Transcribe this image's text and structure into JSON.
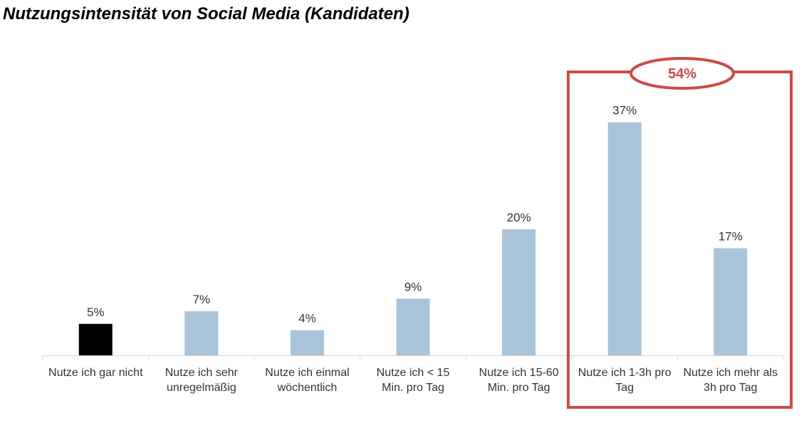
{
  "page": {
    "title": "Nutzungsintensität von Social Media (Kandidaten)"
  },
  "chart_data": {
    "type": "bar",
    "title": "Nutzungsintensität von Social Media (Kandidaten)",
    "xlabel": "",
    "ylabel": "",
    "ylim": [
      0,
      40
    ],
    "grid": false,
    "legend": "none",
    "unit": "%",
    "categories": [
      [
        "Nutze ich gar nicht"
      ],
      [
        "Nutze ich sehr",
        "unregelmäßig"
      ],
      [
        "Nutze ich einmal",
        "wöchentlich"
      ],
      [
        "Nutze ich < 15",
        "Min. pro Tag"
      ],
      [
        "Nutze ich 15-60",
        "Min. pro Tag"
      ],
      [
        "Nutze ich 1-3h pro",
        "Tag"
      ],
      [
        "Nutze ich mehr als",
        "3h pro Tag"
      ]
    ],
    "values": [
      5,
      7,
      4,
      9,
      20,
      37,
      17
    ],
    "value_labels": [
      "5%",
      "7%",
      "4%",
      "9%",
      "20%",
      "37%",
      "17%"
    ],
    "bar_colors": [
      "#000000",
      "#a9c4d9",
      "#a9c4d9",
      "#a9c4d9",
      "#a9c4d9",
      "#a9c4d9",
      "#a9c4d9"
    ],
    "highlight": {
      "categories_index": [
        5,
        6
      ],
      "label": "54%",
      "color": "#cc4a4a"
    }
  }
}
